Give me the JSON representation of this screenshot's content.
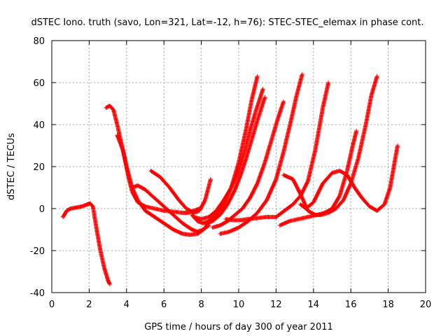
{
  "chart_data": {
    "type": "scatter",
    "title": "dSTEC Iono. truth (savo, Lon=321, Lat=-12, h=76): STEC-STEC_elemax in phase cont.",
    "xlabel": "GPS time / hours of day 300 of year 2011",
    "ylabel": "dSTEC  / TECUs",
    "xlim": [
      0,
      20
    ],
    "ylim": [
      -40,
      80
    ],
    "xticks": [
      "0",
      "2",
      "4",
      "6",
      "8",
      "10",
      "12",
      "14",
      "16",
      "18",
      "20"
    ],
    "yticks": [
      "-40",
      "-20",
      "0",
      "20",
      "40",
      "60",
      "80"
    ],
    "grid": true,
    "marker": "+",
    "color": "#ff0000",
    "series": [
      {
        "x": [
          0.6,
          0.8,
          1.0,
          1.3,
          1.6,
          1.9,
          2.05,
          2.2,
          2.4,
          2.6,
          2.8,
          3.0,
          3.1
        ],
        "y": [
          -4,
          -1,
          0,
          0.5,
          1,
          2,
          2.5,
          1,
          -10,
          -20,
          -28,
          -34,
          -36
        ]
      },
      {
        "x": [
          2.9,
          3.1,
          3.3,
          3.5,
          3.7,
          3.9,
          4.1,
          4.3,
          4.6,
          5.0,
          5.5,
          6.0,
          6.5,
          7.0,
          7.3,
          7.6,
          7.9
        ],
        "y": [
          48,
          49,
          47,
          40,
          32,
          24,
          15,
          8,
          3,
          1,
          0,
          -1,
          -1.5,
          -2,
          -2,
          -1,
          0
        ]
      },
      {
        "x": [
          3.5,
          3.8,
          4.0,
          4.3,
          4.6,
          5.0,
          5.5,
          6.0,
          6.5,
          7.0,
          7.4,
          7.8,
          8.1,
          8.4
        ],
        "y": [
          35,
          28,
          20,
          10,
          4,
          -1,
          -4,
          -7,
          -10,
          -12,
          -12.5,
          -12,
          -10,
          -7
        ]
      },
      {
        "x": [
          4.3,
          4.6,
          5.0,
          5.5,
          6.0,
          6.5,
          7.0,
          7.5,
          7.8,
          8.1,
          8.4
        ],
        "y": [
          10,
          11,
          9,
          5,
          1,
          -3,
          -7,
          -10,
          -11,
          -10,
          -8
        ]
      },
      {
        "x": [
          5.3,
          5.8,
          6.3,
          6.8,
          7.2,
          7.6,
          7.9,
          8.2,
          8.5
        ],
        "y": [
          18,
          15,
          10,
          4,
          0,
          -2,
          -1,
          4,
          14
        ]
      },
      {
        "x": [
          7.5,
          7.8,
          8.1,
          8.4,
          8.8,
          9.2,
          9.6,
          10.0,
          10.4,
          10.7,
          11.0
        ],
        "y": [
          -3,
          -6,
          -7,
          -6,
          -3,
          2,
          10,
          22,
          38,
          52,
          63
        ]
      },
      {
        "x": [
          7.6,
          8.0,
          8.4,
          8.8,
          9.2,
          9.6,
          10.0,
          10.3,
          10.6,
          10.9,
          11.3
        ],
        "y": [
          -4,
          -5,
          -4,
          -1,
          4,
          10,
          18,
          27,
          37,
          46,
          57
        ]
      },
      {
        "x": [
          8.2,
          8.6,
          9.0,
          9.4,
          9.8,
          10.1,
          10.4,
          10.7,
          11.0,
          11.4
        ],
        "y": [
          -7,
          -6,
          -3,
          2,
          9,
          16,
          24,
          33,
          42,
          53
        ]
      },
      {
        "x": [
          8.6,
          9.0,
          9.4,
          9.8,
          10.2,
          10.6,
          11.0,
          11.4,
          11.8,
          12.1,
          12.4
        ],
        "y": [
          -9,
          -8,
          -6,
          -3,
          0,
          5,
          12,
          22,
          34,
          43,
          51
        ]
      },
      {
        "x": [
          9.0,
          9.5,
          10.0,
          10.5,
          11.0,
          11.5,
          12.0,
          12.4,
          12.8,
          13.1,
          13.4
        ],
        "y": [
          -12,
          -11,
          -9,
          -6,
          -2,
          4,
          14,
          27,
          42,
          54,
          64
        ]
      },
      {
        "x": [
          9.3,
          9.7,
          10.1,
          10.5,
          11.0,
          11.5,
          12.0,
          12.3,
          12.6,
          12.9,
          13.3,
          13.7,
          14.1,
          14.5,
          14.8
        ],
        "y": [
          -5,
          -5.5,
          -5.5,
          -5,
          -4.5,
          -4,
          -4,
          -2,
          0,
          2,
          6,
          13,
          28,
          48,
          60
        ]
      },
      {
        "x": [
          12.2,
          12.7,
          13.2,
          13.7,
          14.2,
          14.6,
          15.0,
          15.4,
          15.8,
          16.1,
          16.3
        ],
        "y": [
          -8,
          -6,
          -5,
          -4,
          -3,
          -2,
          0,
          6,
          18,
          30,
          37
        ]
      },
      {
        "x": [
          12.4,
          12.9,
          13.3,
          13.7,
          14.1,
          14.4,
          14.8,
          15.2,
          15.6,
          16.0,
          16.4,
          16.8,
          17.1,
          17.4
        ],
        "y": [
          16,
          14,
          7,
          -1,
          -3,
          -3,
          -2,
          0,
          4,
          12,
          24,
          40,
          54,
          63
        ]
      },
      {
        "x": [
          13.3,
          13.6,
          14.0,
          14.5,
          15.0,
          15.4,
          15.8,
          16.2,
          16.6,
          17.0,
          17.4,
          17.8,
          18.1,
          18.3,
          18.5
        ],
        "y": [
          2,
          0,
          3,
          12,
          17,
          18,
          16,
          10,
          5,
          1,
          -1,
          2,
          10,
          20,
          30
        ]
      }
    ]
  }
}
